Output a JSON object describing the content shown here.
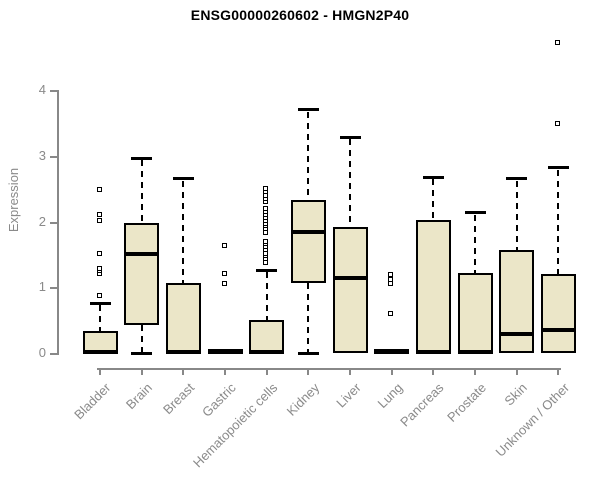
{
  "page": {
    "background": "#ffffff"
  },
  "chart_data": {
    "type": "boxplot",
    "title": "ENSG00000260602 - HMGN2P40",
    "ylabel": "Expression",
    "xlabel": "",
    "ylim": [
      0,
      4
    ],
    "yticks": [
      0,
      1,
      2,
      3,
      4
    ],
    "grid": false,
    "legend": false,
    "categories": [
      "Bladder",
      "Brain",
      "Breast",
      "Gastric",
      "Hematopoietic cells",
      "Kidney",
      "Liver",
      "Lung",
      "Pancreas",
      "Prostate",
      "Skin",
      "Unknown / Other"
    ],
    "series": [
      {
        "label": "Bladder",
        "whisker_low": 0,
        "q1": 0,
        "median": 0.02,
        "q3": 0.33,
        "whisker_high": 0.76,
        "outliers": [
          0.88,
          1.21,
          1.25,
          1.29,
          1.52,
          2.01,
          2.1,
          2.48
        ]
      },
      {
        "label": "Brain",
        "whisker_low": 0,
        "q1": 0.43,
        "median": 1.51,
        "q3": 1.98,
        "whisker_high": 2.96,
        "outliers": []
      },
      {
        "label": "Breast",
        "whisker_low": 0,
        "q1": 0,
        "median": 0.02,
        "q3": 1.06,
        "whisker_high": 2.65,
        "outliers": []
      },
      {
        "label": "Gastric",
        "whisker_low": 0,
        "q1": 0,
        "median": 0.02,
        "q3": 0.02,
        "whisker_high": 0.02,
        "outliers": [
          1.06,
          1.21,
          1.63
        ]
      },
      {
        "label": "Hematopoietic cells",
        "whisker_low": 0,
        "q1": 0,
        "median": 0.02,
        "q3": 0.5,
        "whisker_high": 1.26,
        "outliers": [
          1.38,
          1.43,
          1.48,
          1.52,
          1.57,
          1.62,
          1.66,
          1.7,
          1.84,
          1.89,
          1.94,
          1.97,
          2.01,
          2.06,
          2.11,
          2.15,
          2.2,
          2.31,
          2.35,
          2.4,
          2.45,
          2.5
        ]
      },
      {
        "label": "Kidney",
        "whisker_low": 0,
        "q1": 1.06,
        "median": 1.84,
        "q3": 2.33,
        "whisker_high": 3.7,
        "outliers": []
      },
      {
        "label": "Liver",
        "whisker_low": 0,
        "q1": 0,
        "median": 1.14,
        "q3": 1.91,
        "whisker_high": 3.28,
        "outliers": []
      },
      {
        "label": "Lung",
        "whisker_low": 0,
        "q1": 0,
        "median": 0.02,
        "q3": 0.02,
        "whisker_high": 0.02,
        "outliers": [
          0.6,
          1.05,
          1.12,
          1.19
        ]
      },
      {
        "label": "Pancreas",
        "whisker_low": 0,
        "q1": 0,
        "median": 0.02,
        "q3": 2.03,
        "whisker_high": 2.67,
        "outliers": []
      },
      {
        "label": "Prostate",
        "whisker_low": 0,
        "q1": 0,
        "median": 0.02,
        "q3": 1.22,
        "whisker_high": 2.13,
        "outliers": []
      },
      {
        "label": "Skin",
        "whisker_low": 0,
        "q1": 0,
        "median": 0.29,
        "q3": 1.56,
        "whisker_high": 2.65,
        "outliers": []
      },
      {
        "label": "Unknown / Other",
        "whisker_low": 0,
        "q1": 0,
        "median": 0.35,
        "q3": 1.2,
        "whisker_high": 2.82,
        "outliers": [
          3.49,
          4.73
        ]
      }
    ],
    "colors": {
      "box_fill": "#ebe6c8",
      "box_border": "#000000",
      "median": "#000000",
      "whisker": "#000000",
      "outlier_fill": "#ffffff",
      "outlier_border": "#000000",
      "axis": "#888888",
      "tick_label": "#8a8a8a",
      "title": "#000000"
    }
  }
}
